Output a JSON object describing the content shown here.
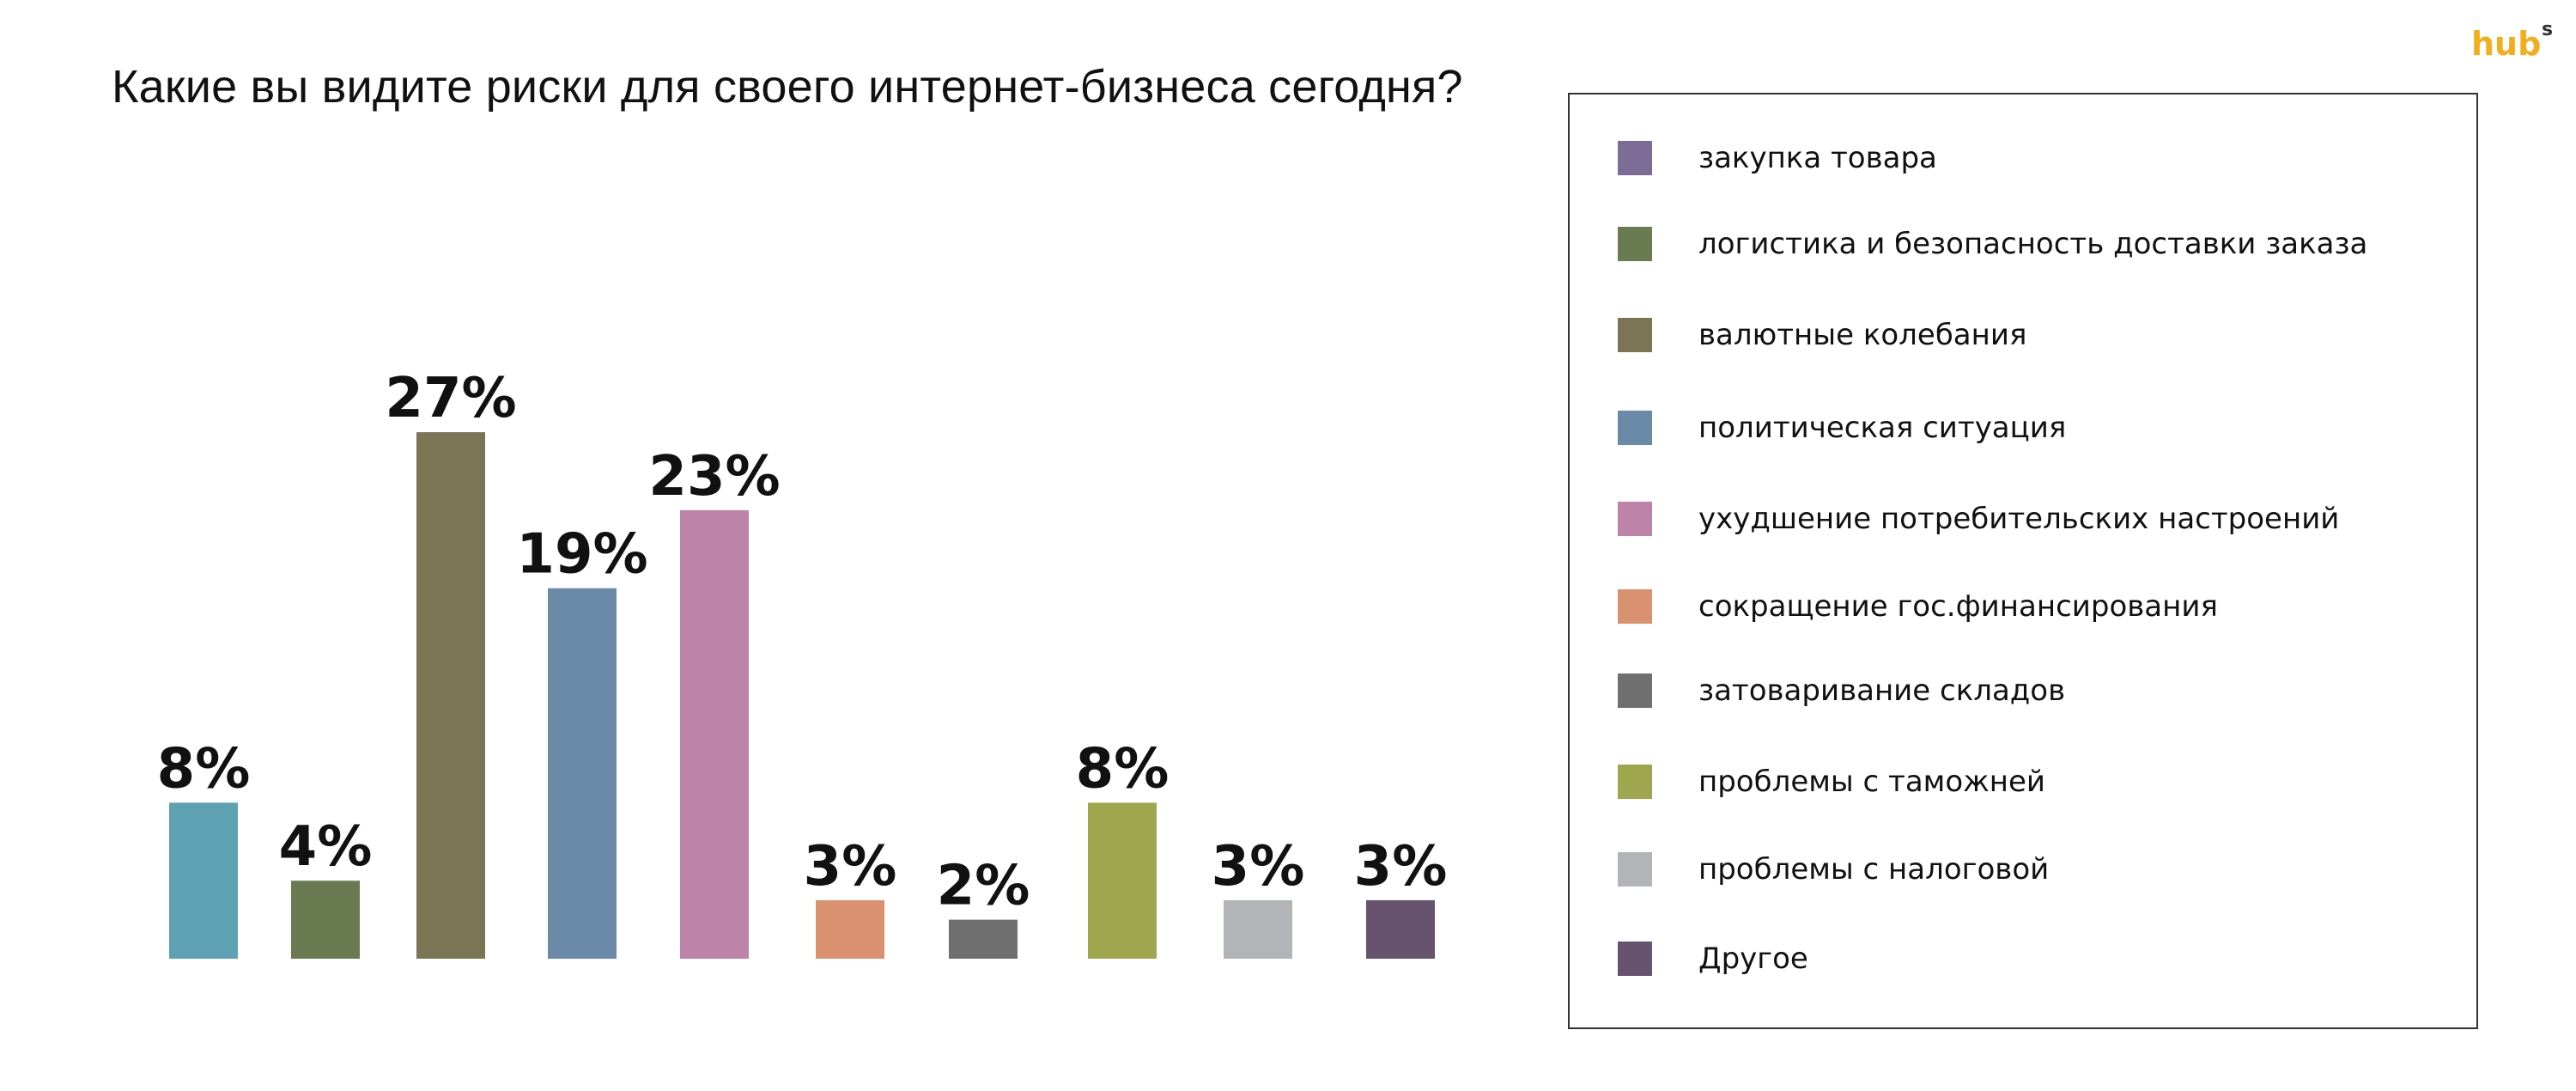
{
  "title": "Какие вы видите риски для своего интернет-бизнеса сегодня?",
  "logo": {
    "text": "hub",
    "superscript": "s",
    "color": "#f2ae1c"
  },
  "chart_data": {
    "type": "bar",
    "title": "Какие вы видите риски для своего интернет-бизнеса сегодня?",
    "xlabel": "",
    "ylabel": "",
    "grid": false,
    "legend_position": "right",
    "categories": [
      "",
      "логистика и безопасность доставки заказа",
      "валютные колебания",
      "политическая ситуация",
      "ухудшение потребительских настроений",
      "сокращение гос.финансирования",
      "затоваривание складов",
      "проблемы с таможней",
      "проблемы с налоговой",
      "Другое"
    ],
    "values": [
      8,
      4,
      27,
      19,
      23,
      3,
      2,
      8,
      3,
      3
    ],
    "value_labels": [
      "8%",
      "4%",
      "27%",
      "19%",
      "23%",
      "3%",
      "2%",
      "8%",
      "3%",
      "3%"
    ],
    "bar_colors": [
      "#5ea1b3",
      "#6a7b52",
      "#7b7555",
      "#6a8aa8",
      "#bd83a8",
      "#d9916f",
      "#6f6f6f",
      "#9ea64e",
      "#b2b4b8",
      "#67536f"
    ],
    "ylim": [
      0,
      27
    ]
  },
  "legend": {
    "items": [
      {
        "label": "закупка товара",
        "color": "#7d6c97"
      },
      {
        "label": "логистика и безопасность доставки заказа",
        "color": "#6a7b52"
      },
      {
        "label": "валютные колебания",
        "color": "#7b7555"
      },
      {
        "label": "политическая ситуация",
        "color": "#6a8aa8"
      },
      {
        "label": "ухудшение потребительских настроений",
        "color": "#bd83a8"
      },
      {
        "label": "сокращение гос.финансирования",
        "color": "#d9916f"
      },
      {
        "label": "затоваривание складов",
        "color": "#6f6f6f"
      },
      {
        "label": "проблемы с таможней",
        "color": "#9ea64e"
      },
      {
        "label": "проблемы с налоговой",
        "color": "#b2b4b8"
      },
      {
        "label": "Другое",
        "color": "#67536f"
      }
    ]
  }
}
